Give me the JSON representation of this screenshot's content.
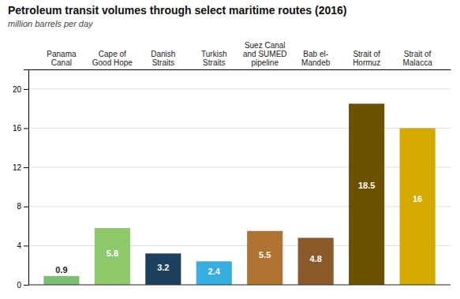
{
  "chart_data": {
    "type": "bar",
    "title": "Petroleum transit volumes through select maritime routes (2016)",
    "subtitle": "million barrels per day",
    "categories": [
      "Panama\nCanal",
      "Cape of\nGood Hope",
      "Danish\nStraits",
      "Turkish\nStraits",
      "Suez Canal\nand SUMED\npipeline",
      "Bab el-\nMandeb",
      "Strait of\nHormuz",
      "Strait of\nMalacca"
    ],
    "values": [
      0.9,
      5.8,
      3.2,
      2.4,
      5.5,
      4.8,
      18.5,
      16.0
    ],
    "colors": [
      "#7abf72",
      "#8dc86a",
      "#1e4060",
      "#38aee0",
      "#b07230",
      "#8b5a2b",
      "#6b5000",
      "#d4aa00"
    ],
    "ylim": [
      0,
      22
    ],
    "yticks": [
      0,
      4,
      8,
      12,
      16,
      20
    ],
    "grid": true,
    "data_labels": true
  }
}
